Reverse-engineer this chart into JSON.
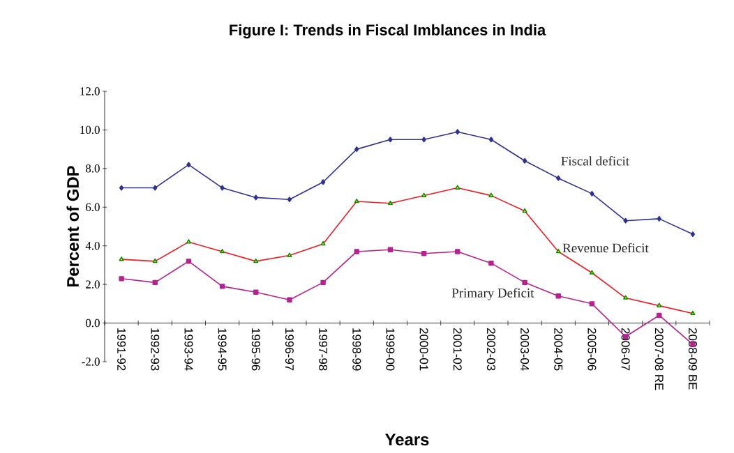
{
  "chart_data": {
    "type": "line",
    "title": "Figure I: Trends in Fiscal Imblances in India",
    "xlabel": "Years",
    "ylabel": "Percent of GDP",
    "categories": [
      "1991-92",
      "1992-93",
      "1993-94",
      "1994-95",
      "1995-96",
      "1996-97",
      "1997-98",
      "1998-99",
      "1999-00",
      "2000-01",
      "2001-02",
      "2002-03",
      "2003-04",
      "2004-05",
      "2005-06",
      "2006-07",
      "2007-08 RE",
      "2008-09 BE"
    ],
    "ylim": [
      -2,
      12
    ],
    "yticks": [
      {
        "value": -2,
        "label": "-2.0"
      },
      {
        "value": 0,
        "label": "0.0"
      },
      {
        "value": 2,
        "label": "2.0"
      },
      {
        "value": 4,
        "label": "4.0"
      },
      {
        "value": 6,
        "label": "6.0"
      },
      {
        "value": 8,
        "label": "8.0"
      },
      {
        "value": 10,
        "label": "10.0"
      },
      {
        "value": 12,
        "label": "12.0"
      }
    ],
    "legend": false,
    "grid": false,
    "series": [
      {
        "name": "Fiscal deficit",
        "color": "#2e3192",
        "marker": "diamond",
        "values": [
          7.0,
          7.0,
          8.2,
          7.0,
          6.5,
          6.4,
          7.3,
          9.0,
          9.5,
          9.5,
          9.9,
          9.5,
          8.4,
          7.5,
          6.7,
          5.3,
          5.4,
          4.6
        ]
      },
      {
        "name": "Revenue Deficit",
        "color": "#ed1c24",
        "marker": "triangle",
        "values": [
          3.3,
          3.2,
          4.2,
          3.7,
          3.2,
          3.5,
          4.1,
          6.3,
          6.2,
          6.6,
          7.0,
          6.6,
          5.8,
          3.7,
          2.6,
          1.3,
          0.9,
          0.5
        ]
      },
      {
        "name": "Primary Deficit",
        "color": "#b5218f",
        "marker": "square",
        "values": [
          2.3,
          2.1,
          3.2,
          1.9,
          1.6,
          1.2,
          2.1,
          3.7,
          3.8,
          3.6,
          3.7,
          3.1,
          2.1,
          1.4,
          1.0,
          -0.7,
          0.4,
          -1.1
        ]
      }
    ]
  }
}
